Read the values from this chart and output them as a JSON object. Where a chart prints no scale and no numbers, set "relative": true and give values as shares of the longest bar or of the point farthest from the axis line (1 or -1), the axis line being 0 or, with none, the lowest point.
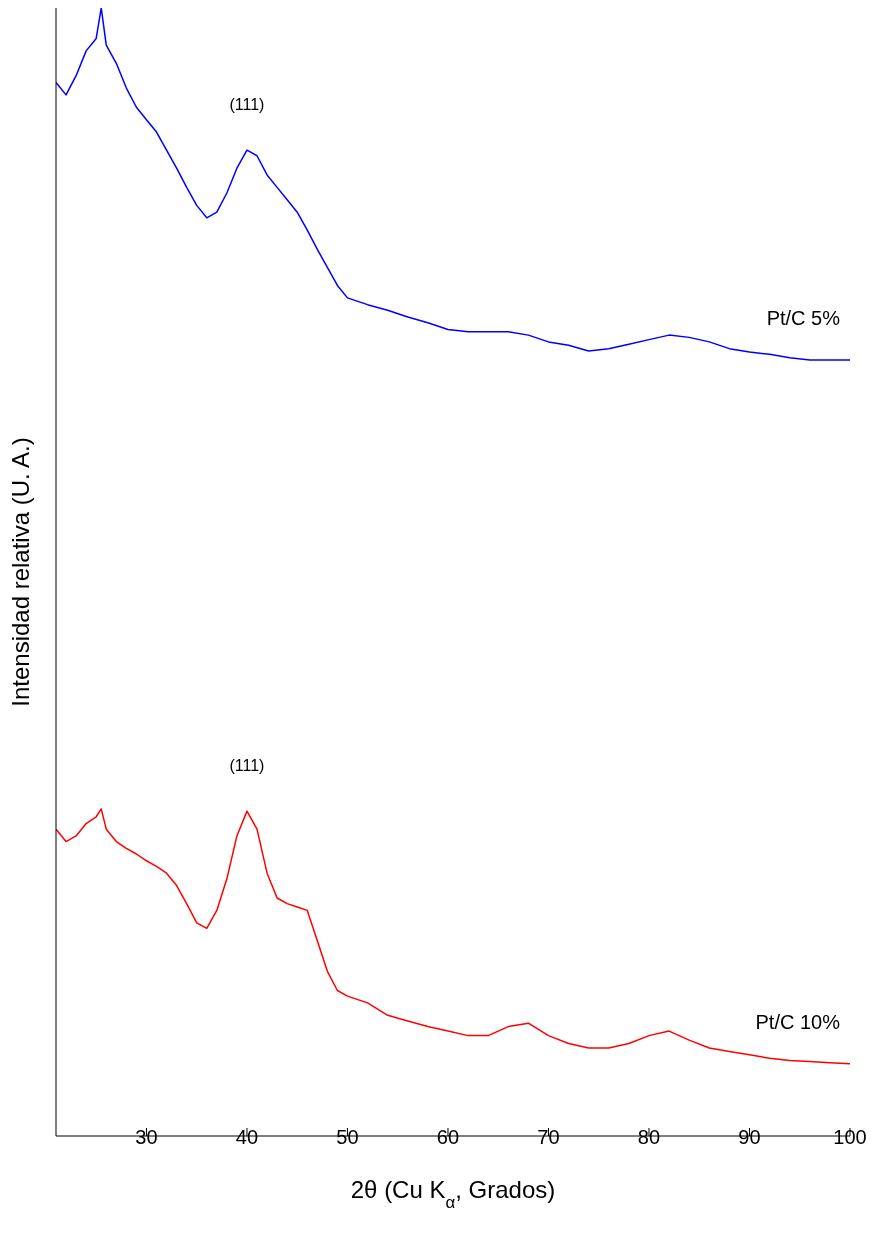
{
  "chart_data": {
    "type": "line",
    "relative": true,
    "xlabel": "2θ (Cu K$_{α}$, Grados)",
    "ylabel": "Intensidad relativa (U. A.)",
    "xlim": [
      21,
      100
    ],
    "xticks": [
      30,
      40,
      50,
      60,
      70,
      80,
      90,
      100
    ],
    "marker": "none",
    "line_style": "solid",
    "x": [
      21,
      22,
      23,
      24,
      25,
      25.5,
      26,
      27,
      28,
      29,
      30,
      31,
      32,
      33,
      34,
      35,
      36,
      37,
      38,
      39,
      40,
      41,
      42,
      43,
      44,
      45,
      46,
      47,
      48,
      49,
      50,
      52,
      54,
      56,
      58,
      60,
      62,
      64,
      66,
      68,
      70,
      72,
      74,
      76,
      78,
      80,
      82,
      84,
      86,
      88,
      90,
      92,
      94,
      96,
      98,
      100
    ],
    "series": [
      {
        "name": "Pt/C 5%",
        "color": "#0000ff",
        "values": [
          0.934,
          0.923,
          0.94,
          0.962,
          0.973,
          1.0,
          0.967,
          0.951,
          0.929,
          0.912,
          0.901,
          0.89,
          0.874,
          0.858,
          0.841,
          0.825,
          0.814,
          0.819,
          0.836,
          0.858,
          0.874,
          0.869,
          0.852,
          0.841,
          0.83,
          0.819,
          0.803,
          0.786,
          0.77,
          0.754,
          0.743,
          0.737,
          0.732,
          0.726,
          0.721,
          0.715,
          0.713,
          0.713,
          0.713,
          0.71,
          0.704,
          0.701,
          0.696,
          0.698,
          0.702,
          0.706,
          0.71,
          0.708,
          0.704,
          0.698,
          0.695,
          0.693,
          0.69,
          0.688,
          0.688,
          0.688
        ]
      },
      {
        "name": "Pt/C 10%",
        "color": "#ff0000",
        "values": [
          0.272,
          0.261,
          0.266,
          0.277,
          0.283,
          0.29,
          0.272,
          0.261,
          0.255,
          0.25,
          0.244,
          0.239,
          0.233,
          0.222,
          0.206,
          0.189,
          0.184,
          0.2,
          0.228,
          0.266,
          0.288,
          0.272,
          0.233,
          0.211,
          0.206,
          0.203,
          0.2,
          0.173,
          0.146,
          0.129,
          0.124,
          0.118,
          0.107,
          0.102,
          0.097,
          0.093,
          0.089,
          0.089,
          0.097,
          0.1,
          0.089,
          0.082,
          0.078,
          0.078,
          0.082,
          0.089,
          0.093,
          0.085,
          0.078,
          0.075,
          0.072,
          0.069,
          0.067,
          0.066,
          0.065,
          0.064
        ]
      }
    ],
    "annotations": [
      "(111)",
      "(111)"
    ]
  }
}
